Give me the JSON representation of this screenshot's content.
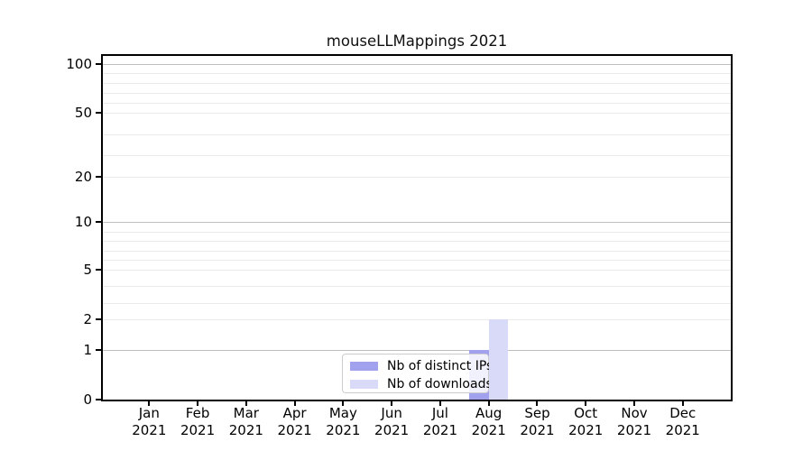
{
  "title": "mouseLLMappings 2021",
  "chart_data": {
    "type": "bar",
    "title": "mouseLLMappings 2021",
    "categories": [
      "Jan 2021",
      "Feb 2021",
      "Mar 2021",
      "Apr 2021",
      "May 2021",
      "Jun 2021",
      "Jul 2021",
      "Aug 2021",
      "Sep 2021",
      "Oct 2021",
      "Nov 2021",
      "Dec 2021"
    ],
    "series": [
      {
        "name": "Nb of distinct IPs",
        "color": "#a1a1ee",
        "values": [
          0,
          0,
          0,
          0,
          0,
          0,
          0,
          1,
          0,
          0,
          0,
          0
        ]
      },
      {
        "name": "Nb of downloads",
        "color": "#d9d9f8",
        "values": [
          0,
          0,
          0,
          0,
          0,
          0,
          0,
          2,
          0,
          0,
          0,
          0
        ]
      }
    ],
    "y_axis": {
      "tick_labels": [
        0,
        1,
        2,
        5,
        10,
        20,
        50,
        100
      ],
      "ylim": [
        0,
        100
      ],
      "scale": "log-like",
      "grid": "horizontal"
    },
    "legend": {
      "position": "inside-bottom-center"
    },
    "colors": {
      "grid_minor": "#eaeaea",
      "grid_major": "#bfbfbf",
      "axis": "#000000",
      "background": "#ffffff"
    }
  }
}
